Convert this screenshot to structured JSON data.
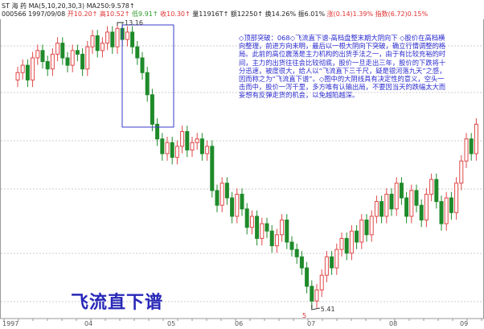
{
  "header": {
    "line1": "ST 海 药 MA(5,10,20,30,3) MA250:9.578↑",
    "code_date": "000566 1997/09/08",
    "open": "开10.20↑",
    "high": "高10.52↑",
    "low": "低9.91↑",
    "close": "收10.30↑",
    "volume": "量11916T↑",
    "amount": "额12250↑",
    "turnover": "换14.26%",
    "amplitude": "振6.01%",
    "change": "涨(0.14)1.39%",
    "index": "指数(6.72)0.15%"
  },
  "note": "◇顶部突破：068◇飞流直下谱-高档盘整末期大阴向下 ◇股价在高档横向整理，前进方向未明，最后以一根大阴向下突破，确立行情调整的格局。此前的高位震荡是主力机构的出货手法之一，由于有比较充裕的时间，主力的出货往往会比较彻底，股价一旦走出三年，股价的下跌将十分迅速，被度很大，给人以“飞流直下三千尺，疑是银河落九天”之感，因而称之为“飞流直下谱”。◇图中的大阴线具有决定性的意义，空头一击而中，股价一泻千里，多方唯有认输出局，不要因当天的跌幅太大而妄想有反弹走货的机会，以免越陷越深。",
  "title": "飞流直下谱",
  "colors": {
    "up": "#e04848",
    "down": "#1f8a2a",
    "box": "#3a3acc",
    "text": "#2b2bd0"
  },
  "chart_data": {
    "type": "candlestick",
    "x_tick_labels": [
      "1997",
      "04",
      "05",
      "06",
      "07",
      "08",
      "09"
    ],
    "close": [
      11.8,
      12.0,
      11.6,
      12.2,
      12.4,
      12.1,
      11.9,
      12.3,
      12.6,
      12.2,
      12.0,
      12.4,
      12.3,
      11.9,
      12.5,
      12.8,
      12.4,
      12.6,
      12.9,
      12.5,
      13.0,
      12.7,
      12.9,
      12.5,
      12.2,
      11.8,
      11.2,
      10.4,
      10.0,
      9.6,
      9.9,
      9.5,
      9.8,
      10.2,
      9.7,
      9.9,
      10.0,
      9.6,
      9.8,
      8.6,
      8.2,
      8.8,
      8.4,
      7.9,
      8.5,
      8.1,
      7.6,
      7.9,
      7.3,
      7.7,
      7.5,
      7.1,
      7.4,
      7.8,
      7.2,
      7.0,
      6.8,
      6.5,
      6.0,
      5.6,
      5.9,
      6.3,
      6.8,
      6.5,
      7.0,
      7.3,
      6.9,
      7.5,
      7.2,
      7.8,
      7.4,
      7.9,
      8.3,
      7.9,
      8.5,
      8.1,
      8.8,
      8.4,
      7.9,
      8.6,
      8.2,
      7.8,
      8.5,
      8.9,
      8.3,
      7.7,
      8.4,
      8.0,
      8.8,
      9.4,
      10.0,
      9.6,
      10.4
    ],
    "first_open": 11.6,
    "annotations": [
      {
        "label": "13.16",
        "value": 13.16
      },
      {
        "label": "5.41",
        "value": 5.41
      },
      {
        "label": "5",
        "marker": "month 5 marker"
      }
    ],
    "highlight_box": "topping consolidation before big bearish candle"
  }
}
